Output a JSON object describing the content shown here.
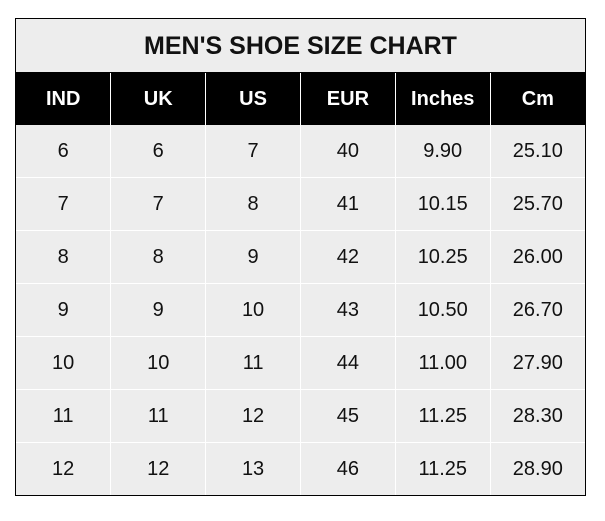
{
  "chart_data": {
    "type": "table",
    "title": "MEN'S SHOE SIZE CHART",
    "columns": [
      "IND",
      "UK",
      "US",
      "EUR",
      "Inches",
      "Cm"
    ],
    "rows": [
      [
        "6",
        "6",
        "7",
        "40",
        "9.90",
        "25.10"
      ],
      [
        "7",
        "7",
        "8",
        "41",
        "10.15",
        "25.70"
      ],
      [
        "8",
        "8",
        "9",
        "42",
        "10.25",
        "26.00"
      ],
      [
        "9",
        "9",
        "10",
        "43",
        "10.50",
        "26.70"
      ],
      [
        "10",
        "10",
        "11",
        "44",
        "11.00",
        "27.90"
      ],
      [
        "11",
        "11",
        "12",
        "45",
        "11.25",
        "28.30"
      ],
      [
        "12",
        "12",
        "13",
        "46",
        "11.25",
        "28.90"
      ]
    ]
  },
  "colors": {
    "header_bg": "#000000",
    "header_text": "#ffffff",
    "cell_bg": "#ededed",
    "grid": "#ffffff"
  }
}
